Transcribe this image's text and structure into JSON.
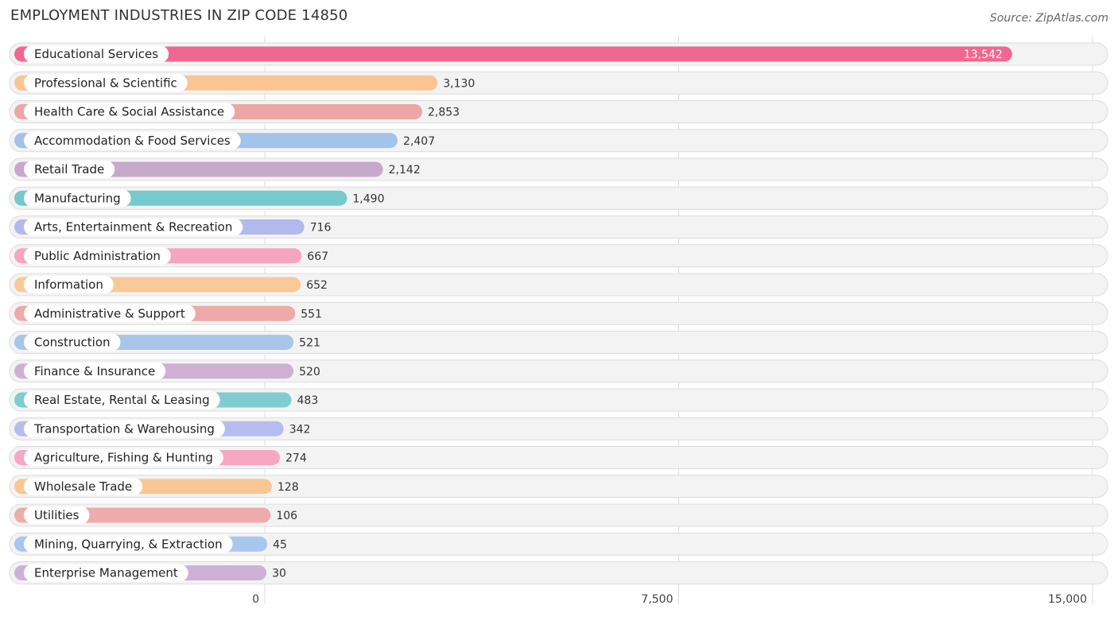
{
  "header": {
    "title": "EMPLOYMENT INDUSTRIES IN ZIP CODE 14850",
    "source": "Source: ZipAtlas.com"
  },
  "chart_data": {
    "type": "bar",
    "orientation": "horizontal",
    "title": "EMPLOYMENT INDUSTRIES IN ZIP CODE 14850",
    "xlim": [
      0,
      15000
    ],
    "x_ticks": [
      0,
      7500,
      15000
    ],
    "x_tick_labels": [
      "0",
      "7,500",
      "15,000"
    ],
    "grid": true,
    "categories": [
      "Educational Services",
      "Professional & Scientific",
      "Health Care & Social Assistance",
      "Accommodation & Food Services",
      "Retail Trade",
      "Manufacturing",
      "Arts, Entertainment & Recreation",
      "Public Administration",
      "Information",
      "Administrative & Support",
      "Construction",
      "Finance & Insurance",
      "Real Estate, Rental & Leasing",
      "Transportation & Warehousing",
      "Agriculture, Fishing & Hunting",
      "Wholesale Trade",
      "Utilities",
      "Mining, Quarrying, & Extraction",
      "Enterprise Management"
    ],
    "values": [
      13542,
      3130,
      2853,
      2407,
      2142,
      1490,
      716,
      667,
      652,
      551,
      521,
      520,
      483,
      342,
      274,
      128,
      106,
      45,
      30
    ],
    "value_labels": [
      "13,542",
      "3,130",
      "2,853",
      "2,407",
      "2,142",
      "1,490",
      "716",
      "667",
      "652",
      "551",
      "521",
      "520",
      "483",
      "342",
      "274",
      "128",
      "106",
      "45",
      "30"
    ],
    "colors": [
      "#f06892",
      "#f9c592",
      "#eda6a6",
      "#a2c3ea",
      "#c7a9cc",
      "#76c9cc",
      "#b3b9ec",
      "#f5a5bf",
      "#f9c999",
      "#efa9a9",
      "#a8c6ec",
      "#cfb0d3",
      "#7fcdd0",
      "#b6bdee",
      "#f6a7c1",
      "#f9c795",
      "#efabab",
      "#a9c7ee",
      "#cdb1d6"
    ]
  }
}
